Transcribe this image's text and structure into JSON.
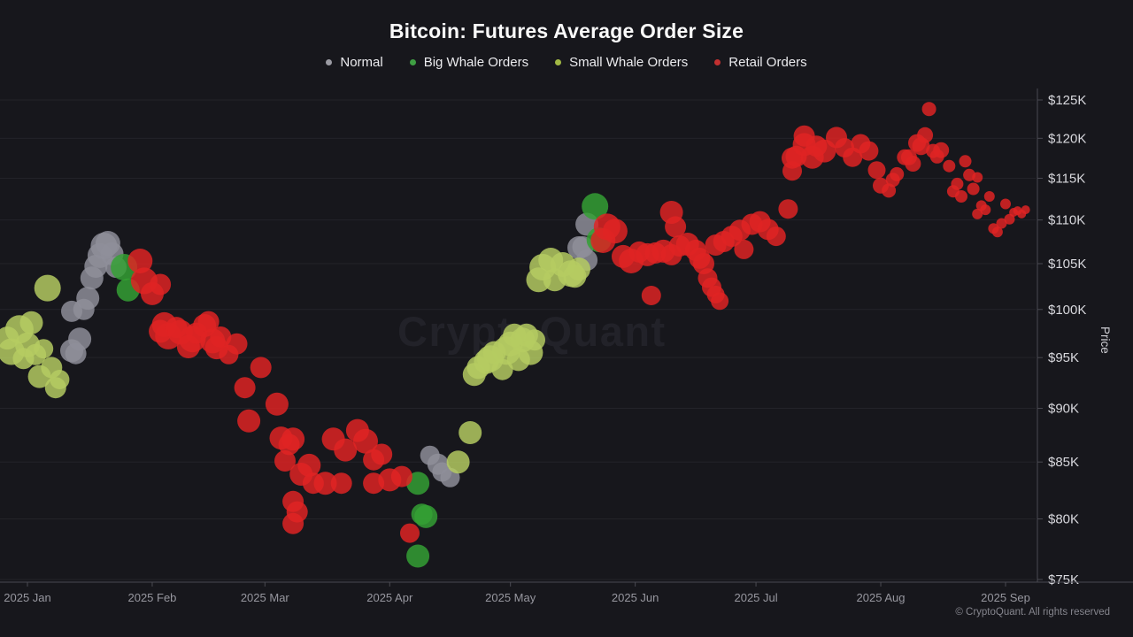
{
  "header": {
    "title": "Bitcoin: Futures Average Order Size"
  },
  "legend": {
    "items": [
      {
        "label": "Normal",
        "color": "#9b9ba3"
      },
      {
        "label": "Big Whale Orders",
        "color": "#3f9f43"
      },
      {
        "label": "Small Whale Orders",
        "color": "#a2b944"
      },
      {
        "label": "Retail Orders",
        "color": "#c23030"
      }
    ]
  },
  "watermark": {
    "text": "CryptoQuant"
  },
  "footer": {
    "copyright": "© CryptoQuant. All rights reserved"
  },
  "chart_data": {
    "type": "scatter",
    "title": "Bitcoin: Futures Average Order Size",
    "grid": true,
    "legend_position": "top",
    "point_format": [
      "days_since_2025_01_01",
      "price_usd_thousands",
      "radius_px"
    ],
    "x_axis": {
      "start_date": "2025-01-01",
      "ticks": [
        {
          "day": 0,
          "label": "2025 Jan"
        },
        {
          "day": 31,
          "label": "2025 Feb"
        },
        {
          "day": 59,
          "label": "2025 Mar"
        },
        {
          "day": 90,
          "label": "2025 Apr"
        },
        {
          "day": 120,
          "label": "2025 May"
        },
        {
          "day": 151,
          "label": "2025 Jun"
        },
        {
          "day": 181,
          "label": "2025 Jul"
        },
        {
          "day": 212,
          "label": "2025 Aug"
        },
        {
          "day": 243,
          "label": "2025 Sep"
        }
      ]
    },
    "y_axis": {
      "label": "Price",
      "scale": "log",
      "range_usd_thousands": [
        75,
        125
      ],
      "ticks": [
        {
          "value": 125,
          "label": "$125K"
        },
        {
          "value": 120,
          "label": "$120K"
        },
        {
          "value": 115,
          "label": "$115K"
        },
        {
          "value": 110,
          "label": "$110K"
        },
        {
          "value": 105,
          "label": "$105K"
        },
        {
          "value": 100,
          "label": "$100K"
        },
        {
          "value": 95,
          "label": "$95K"
        },
        {
          "value": 90,
          "label": "$90K"
        },
        {
          "value": 85,
          "label": "$85K"
        },
        {
          "value": 80,
          "label": "$80K"
        },
        {
          "value": 75,
          "label": "$75K"
        }
      ]
    },
    "series": [
      {
        "name": "Normal",
        "color": "#8f8f9a",
        "points": [
          [
            11,
            95.7,
            13
          ],
          [
            12,
            95.4,
            12
          ],
          [
            11,
            99.8,
            12
          ],
          [
            13,
            96.9,
            13
          ],
          [
            14,
            100.0,
            12
          ],
          [
            15,
            101.2,
            13
          ],
          [
            16,
            103.4,
            13
          ],
          [
            17,
            104.7,
            13
          ],
          [
            18,
            105.9,
            14
          ],
          [
            19,
            107.0,
            15
          ],
          [
            20,
            107.3,
            14
          ],
          [
            21,
            106.1,
            13
          ],
          [
            22,
            104.6,
            12
          ],
          [
            100,
            85.6,
            11
          ],
          [
            102,
            84.8,
            12
          ],
          [
            103,
            84.1,
            11
          ],
          [
            105,
            83.6,
            11
          ],
          [
            137,
            106.8,
            13
          ],
          [
            138,
            106.9,
            12
          ],
          [
            139,
            109.5,
            13
          ],
          [
            139,
            105.4,
            12
          ]
        ]
      },
      {
        "name": "Big Whale Orders",
        "color": "#35a135",
        "points": [
          [
            24,
            104.6,
            15
          ],
          [
            25,
            102.1,
            13
          ],
          [
            97,
            83.1,
            13
          ],
          [
            98,
            80.4,
            12
          ],
          [
            99,
            80.2,
            13
          ],
          [
            97,
            76.9,
            13
          ],
          [
            141,
            111.6,
            15
          ],
          [
            142,
            107.7,
            14
          ]
        ]
      },
      {
        "name": "Small Whale Orders",
        "color": "#b5cc62",
        "points": [
          [
            -5,
            97.0,
            13
          ],
          [
            -4,
            95.6,
            15
          ],
          [
            -2,
            97.9,
            16
          ],
          [
            -1,
            94.9,
            12
          ],
          [
            0,
            96.3,
            14
          ],
          [
            1,
            98.6,
            13
          ],
          [
            2,
            95.3,
            12
          ],
          [
            3,
            93.1,
            13
          ],
          [
            4,
            95.9,
            11
          ],
          [
            5,
            102.3,
            15
          ],
          [
            6,
            94.0,
            12
          ],
          [
            7,
            92.0,
            12
          ],
          [
            8,
            92.8,
            11
          ],
          [
            107,
            85.0,
            13
          ],
          [
            110,
            87.7,
            13
          ],
          [
            111,
            93.3,
            13
          ],
          [
            112,
            94.0,
            13
          ],
          [
            114,
            94.6,
            14
          ],
          [
            115,
            94.9,
            15
          ],
          [
            116,
            95.5,
            13
          ],
          [
            118,
            93.8,
            12
          ],
          [
            119,
            95.7,
            16
          ],
          [
            120,
            96.4,
            14
          ],
          [
            121,
            97.3,
            13
          ],
          [
            122,
            94.8,
            13
          ],
          [
            123,
            96.8,
            14
          ],
          [
            124,
            97.3,
            13
          ],
          [
            125,
            95.5,
            14
          ],
          [
            126,
            96.8,
            12
          ],
          [
            127,
            103.2,
            14
          ],
          [
            128,
            104.6,
            15
          ],
          [
            130,
            105.4,
            14
          ],
          [
            131,
            103.2,
            13
          ],
          [
            133,
            104.9,
            14
          ],
          [
            135,
            103.9,
            15
          ],
          [
            136,
            103.6,
            13
          ],
          [
            137,
            104.4,
            13
          ]
        ]
      },
      {
        "name": "Retail Orders",
        "color": "#e02424",
        "points": [
          [
            28,
            105.3,
            14
          ],
          [
            29,
            103.1,
            15
          ],
          [
            31,
            101.7,
            13
          ],
          [
            33,
            102.7,
            12
          ],
          [
            33,
            97.7,
            13
          ],
          [
            34,
            98.4,
            14
          ],
          [
            35,
            97.2,
            15
          ],
          [
            37,
            98.1,
            12
          ],
          [
            38,
            97.6,
            14
          ],
          [
            40,
            96.1,
            13
          ],
          [
            41,
            96.9,
            15
          ],
          [
            42,
            97.5,
            12
          ],
          [
            44,
            98.3,
            13
          ],
          [
            45,
            98.7,
            12
          ],
          [
            46,
            96.7,
            14
          ],
          [
            47,
            96.0,
            13
          ],
          [
            48,
            97.1,
            12
          ],
          [
            50,
            95.3,
            11
          ],
          [
            52,
            96.4,
            12
          ],
          [
            54,
            92.0,
            12
          ],
          [
            55,
            88.8,
            13
          ],
          [
            58,
            94.0,
            12
          ],
          [
            62,
            90.4,
            13
          ],
          [
            63,
            87.2,
            13
          ],
          [
            64,
            85.1,
            12
          ],
          [
            65,
            86.6,
            12
          ],
          [
            66,
            87.1,
            13
          ],
          [
            66,
            81.5,
            12
          ],
          [
            67,
            80.6,
            12
          ],
          [
            66,
            79.6,
            12
          ],
          [
            68,
            83.9,
            13
          ],
          [
            70,
            84.7,
            13
          ],
          [
            71,
            83.1,
            12
          ],
          [
            74,
            83.1,
            13
          ],
          [
            76,
            87.1,
            13
          ],
          [
            78,
            83.1,
            12
          ],
          [
            79,
            86.1,
            13
          ],
          [
            82,
            87.9,
            13
          ],
          [
            84,
            86.9,
            14
          ],
          [
            86,
            85.2,
            12
          ],
          [
            86,
            83.1,
            12
          ],
          [
            88,
            85.7,
            12
          ],
          [
            90,
            83.4,
            13
          ],
          [
            93,
            83.7,
            12
          ],
          [
            95,
            78.8,
            11
          ],
          [
            143,
            107.6,
            14
          ],
          [
            144,
            109.2,
            15
          ],
          [
            146,
            108.7,
            14
          ],
          [
            148,
            105.8,
            13
          ],
          [
            150,
            105.3,
            14
          ],
          [
            152,
            106.3,
            12
          ],
          [
            154,
            106.0,
            13
          ],
          [
            155,
            101.5,
            11
          ],
          [
            156,
            106.2,
            12
          ],
          [
            158,
            106.4,
            13
          ],
          [
            160,
            110.9,
            13
          ],
          [
            161,
            109.2,
            12
          ],
          [
            160,
            106.0,
            12
          ],
          [
            162,
            107.0,
            12
          ],
          [
            164,
            107.2,
            13
          ],
          [
            166,
            106.5,
            12
          ],
          [
            167,
            105.6,
            12
          ],
          [
            168,
            105.0,
            12
          ],
          [
            169,
            103.4,
            11
          ],
          [
            170,
            102.4,
            11
          ],
          [
            171,
            101.6,
            10
          ],
          [
            172,
            100.9,
            10
          ],
          [
            171,
            107.1,
            12
          ],
          [
            173,
            107.5,
            12
          ],
          [
            175,
            108.1,
            12
          ],
          [
            177,
            108.8,
            12
          ],
          [
            178,
            106.6,
            11
          ],
          [
            180,
            109.5,
            12
          ],
          [
            182,
            109.8,
            12
          ],
          [
            184,
            108.9,
            12
          ],
          [
            186,
            108.1,
            11
          ],
          [
            189,
            111.3,
            11
          ],
          [
            190,
            115.9,
            11
          ],
          [
            190,
            117.5,
            12
          ],
          [
            191,
            117.7,
            12
          ],
          [
            193,
            119.2,
            13
          ],
          [
            193,
            120.3,
            12
          ],
          [
            195,
            117.6,
            13
          ],
          [
            196,
            119.0,
            12
          ],
          [
            198,
            118.4,
            13
          ],
          [
            201,
            120.1,
            12
          ],
          [
            203,
            118.8,
            11
          ],
          [
            205,
            117.6,
            11
          ],
          [
            207,
            119.3,
            11
          ],
          [
            209,
            118.4,
            11
          ],
          [
            211,
            116.0,
            10
          ],
          [
            212,
            114.1,
            9
          ],
          [
            214,
            113.5,
            8
          ],
          [
            215,
            114.8,
            8
          ],
          [
            216,
            115.5,
            8
          ],
          [
            218,
            117.6,
            9
          ],
          [
            219,
            117.6,
            9
          ],
          [
            220,
            116.8,
            9
          ],
          [
            221,
            119.4,
            10
          ],
          [
            222,
            119.0,
            10
          ],
          [
            223,
            120.4,
            9
          ],
          [
            224,
            123.8,
            8
          ],
          [
            225,
            118.4,
            8
          ],
          [
            226,
            117.7,
            8
          ],
          [
            227,
            118.5,
            9
          ],
          [
            229,
            116.5,
            7
          ],
          [
            230,
            113.4,
            7
          ],
          [
            231,
            114.3,
            7
          ],
          [
            232,
            112.8,
            7
          ],
          [
            233,
            117.1,
            7
          ],
          [
            234,
            115.4,
            7
          ],
          [
            235,
            113.7,
            7
          ],
          [
            236,
            115.1,
            6
          ],
          [
            236,
            110.7,
            6
          ],
          [
            237,
            111.7,
            6
          ],
          [
            238,
            111.2,
            6
          ],
          [
            239,
            112.8,
            6
          ],
          [
            240,
            109.0,
            6
          ],
          [
            241,
            108.6,
            6
          ],
          [
            242,
            109.6,
            6
          ],
          [
            243,
            111.9,
            6
          ],
          [
            244,
            110.1,
            6
          ],
          [
            245,
            110.9,
            5
          ],
          [
            246,
            111.1,
            5
          ],
          [
            247,
            110.7,
            5
          ],
          [
            248,
            111.2,
            5
          ]
        ]
      }
    ]
  }
}
